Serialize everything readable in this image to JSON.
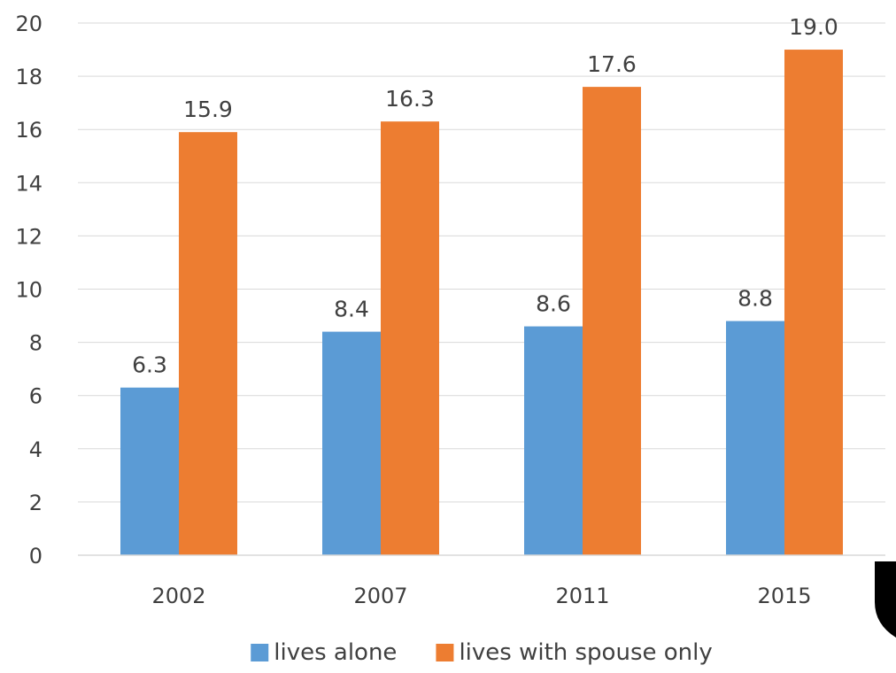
{
  "chart_data": {
    "type": "bar",
    "categories": [
      "2002",
      "2007",
      "2011",
      "2015"
    ],
    "series": [
      {
        "name": "lives alone",
        "values": [
          6.3,
          8.4,
          8.6,
          8.8
        ],
        "color": "#5b9bd5",
        "labels": [
          "6.3",
          "8.4",
          "8.6",
          "8.8"
        ]
      },
      {
        "name": "lives with spouse only",
        "values": [
          15.9,
          16.3,
          17.6,
          19.0
        ],
        "color": "#ed7d31",
        "labels": [
          "15.9",
          "16.3",
          "17.6",
          "19.0"
        ]
      }
    ],
    "title": "",
    "xlabel": "",
    "ylabel": "",
    "ylim": [
      0,
      20
    ],
    "yticks": [
      "0",
      "2",
      "4",
      "6",
      "8",
      "10",
      "12",
      "14",
      "16",
      "18",
      "20"
    ],
    "grid": true,
    "legend_position": "bottom"
  }
}
